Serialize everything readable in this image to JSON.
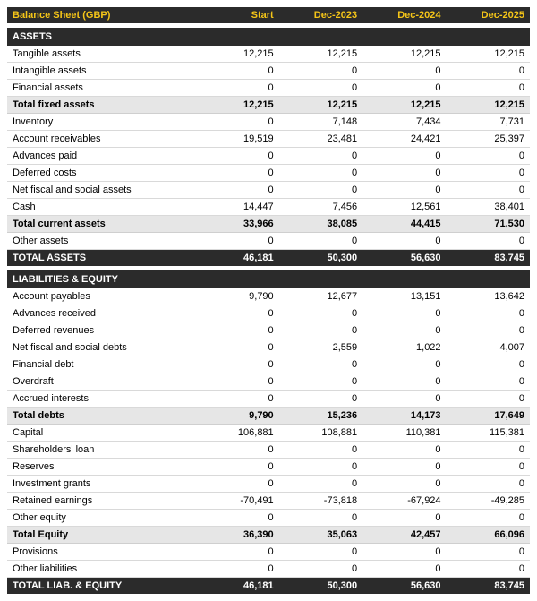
{
  "header": {
    "title": "Balance Sheet (GBP)",
    "cols": [
      "Start",
      "Dec-2023",
      "Dec-2024",
      "Dec-2025"
    ]
  },
  "colors": {
    "header_bg": "#2b2b2b",
    "header_fg": "#f5c518",
    "section_fg": "#ffffff",
    "subtotal_bg": "#e6e6e6",
    "row_border": "#d9d9d9",
    "body_bg": "#ffffff"
  },
  "rows": [
    {
      "type": "section",
      "label": "ASSETS"
    },
    {
      "type": "line",
      "label": "Tangible assets",
      "v": [
        "12,215",
        "12,215",
        "12,215",
        "12,215"
      ]
    },
    {
      "type": "line",
      "label": "Intangible assets",
      "v": [
        "0",
        "0",
        "0",
        "0"
      ]
    },
    {
      "type": "line",
      "label": "Financial assets",
      "v": [
        "0",
        "0",
        "0",
        "0"
      ]
    },
    {
      "type": "subtotal",
      "label": "Total fixed assets",
      "v": [
        "12,215",
        "12,215",
        "12,215",
        "12,215"
      ]
    },
    {
      "type": "line",
      "label": "Inventory",
      "v": [
        "0",
        "7,148",
        "7,434",
        "7,731"
      ]
    },
    {
      "type": "line",
      "label": "Account receivables",
      "v": [
        "19,519",
        "23,481",
        "24,421",
        "25,397"
      ]
    },
    {
      "type": "line",
      "label": "Advances paid",
      "v": [
        "0",
        "0",
        "0",
        "0"
      ]
    },
    {
      "type": "line",
      "label": "Deferred costs",
      "v": [
        "0",
        "0",
        "0",
        "0"
      ]
    },
    {
      "type": "line",
      "label": "Net fiscal and social assets",
      "v": [
        "0",
        "0",
        "0",
        "0"
      ]
    },
    {
      "type": "line",
      "label": "Cash",
      "v": [
        "14,447",
        "7,456",
        "12,561",
        "38,401"
      ]
    },
    {
      "type": "subtotal",
      "label": "Total current assets",
      "v": [
        "33,966",
        "38,085",
        "44,415",
        "71,530"
      ]
    },
    {
      "type": "line",
      "label": "Other assets",
      "v": [
        "0",
        "0",
        "0",
        "0"
      ]
    },
    {
      "type": "grand",
      "label": "TOTAL ASSETS",
      "v": [
        "46,181",
        "50,300",
        "56,630",
        "83,745"
      ]
    },
    {
      "type": "section",
      "label": "LIABILITIES & EQUITY"
    },
    {
      "type": "line",
      "label": "Account payables",
      "v": [
        "9,790",
        "12,677",
        "13,151",
        "13,642"
      ]
    },
    {
      "type": "line",
      "label": "Advances received",
      "v": [
        "0",
        "0",
        "0",
        "0"
      ]
    },
    {
      "type": "line",
      "label": "Deferred revenues",
      "v": [
        "0",
        "0",
        "0",
        "0"
      ]
    },
    {
      "type": "line",
      "label": "Net fiscal and social debts",
      "v": [
        "0",
        "2,559",
        "1,022",
        "4,007"
      ]
    },
    {
      "type": "line",
      "label": "Financial debt",
      "v": [
        "0",
        "0",
        "0",
        "0"
      ]
    },
    {
      "type": "line",
      "label": "Overdraft",
      "v": [
        "0",
        "0",
        "0",
        "0"
      ]
    },
    {
      "type": "line",
      "label": "Accrued interests",
      "v": [
        "0",
        "0",
        "0",
        "0"
      ]
    },
    {
      "type": "subtotal",
      "label": "Total debts",
      "v": [
        "9,790",
        "15,236",
        "14,173",
        "17,649"
      ]
    },
    {
      "type": "line",
      "label": "Capital",
      "v": [
        "106,881",
        "108,881",
        "110,381",
        "115,381"
      ]
    },
    {
      "type": "line",
      "label": "Shareholders' loan",
      "v": [
        "0",
        "0",
        "0",
        "0"
      ]
    },
    {
      "type": "line",
      "label": "Reserves",
      "v": [
        "0",
        "0",
        "0",
        "0"
      ]
    },
    {
      "type": "line",
      "label": "Investment grants",
      "v": [
        "0",
        "0",
        "0",
        "0"
      ]
    },
    {
      "type": "line",
      "label": "Retained earnings",
      "v": [
        "-70,491",
        "-73,818",
        "-67,924",
        "-49,285"
      ]
    },
    {
      "type": "line",
      "label": "Other equity",
      "v": [
        "0",
        "0",
        "0",
        "0"
      ]
    },
    {
      "type": "subtotal",
      "label": "Total Equity",
      "v": [
        "36,390",
        "35,063",
        "42,457",
        "66,096"
      ]
    },
    {
      "type": "line",
      "label": "Provisions",
      "v": [
        "0",
        "0",
        "0",
        "0"
      ]
    },
    {
      "type": "line",
      "label": "Other liabilities",
      "v": [
        "0",
        "0",
        "0",
        "0"
      ]
    },
    {
      "type": "grand",
      "label": "TOTAL LIAB. & EQUITY",
      "v": [
        "46,181",
        "50,300",
        "56,630",
        "83,745"
      ]
    }
  ]
}
